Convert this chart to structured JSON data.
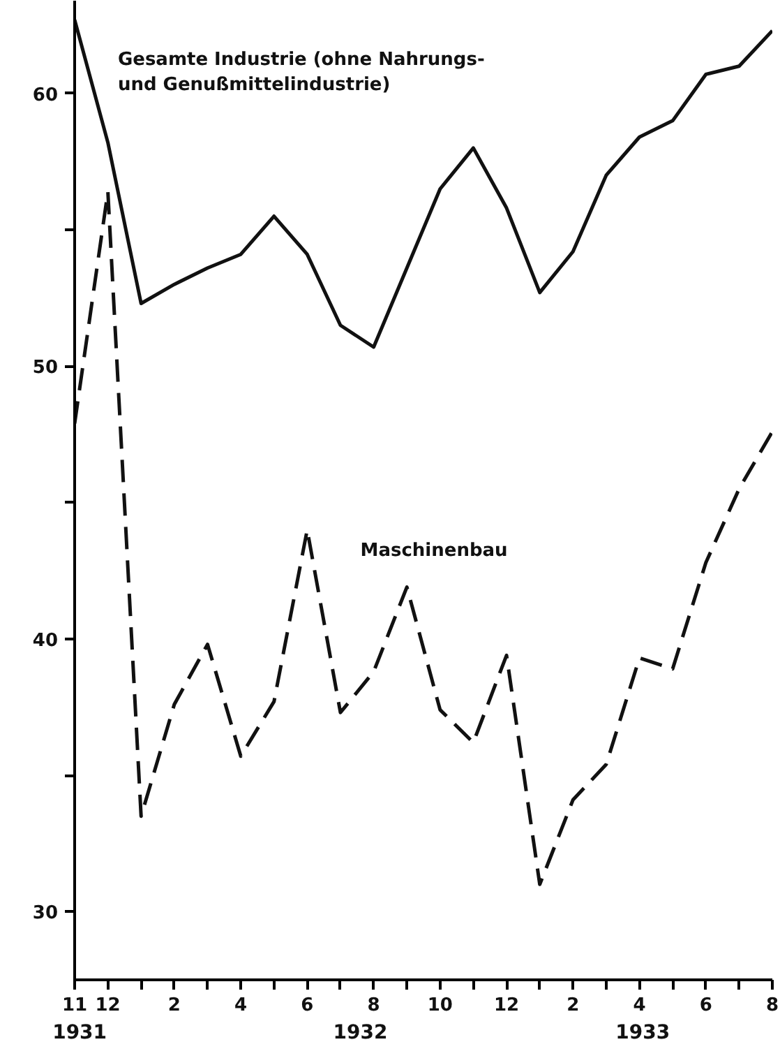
{
  "chart_data": {
    "type": "line",
    "categories": [
      "11",
      "12",
      null,
      "2",
      null,
      "4",
      null,
      "6",
      null,
      "8",
      null,
      "10",
      null,
      "12",
      null,
      "2",
      null,
      "4",
      null,
      "6",
      null,
      "8"
    ],
    "ylim": [
      27.5,
      63.4
    ],
    "yticks": [
      30,
      {
        "value": 35,
        "label": null
      },
      40,
      {
        "value": 45,
        "label": null
      },
      50,
      {
        "value": 55,
        "label": null
      },
      60
    ],
    "series": [
      {
        "name": "Gesamte Industrie (ohne Nahrungs-\nund Genußmittelindustrie)",
        "color": "#111111",
        "line_style": "solid",
        "values": [
          62.7,
          58.2,
          52.3,
          53.0,
          53.6,
          54.1,
          55.5,
          54.1,
          51.5,
          50.7,
          53.6,
          56.5,
          58.0,
          55.8,
          52.7,
          54.2,
          57.0,
          58.4,
          59.0,
          60.7,
          61.0,
          62.3
        ]
      },
      {
        "name": "Maschinenbau",
        "color": "#111111",
        "line_style": "dashed",
        "values": [
          47.9,
          56.4,
          33.5,
          37.6,
          39.8,
          35.7,
          37.7,
          44.0,
          37.3,
          38.8,
          41.9,
          37.4,
          36.2,
          39.4,
          31.0,
          34.1,
          35.4,
          39.3,
          38.9,
          42.8,
          45.5,
          47.6
        ]
      }
    ],
    "annotations": [
      "1931",
      "1932",
      "1933"
    ],
    "grid": false,
    "marker": "none"
  }
}
